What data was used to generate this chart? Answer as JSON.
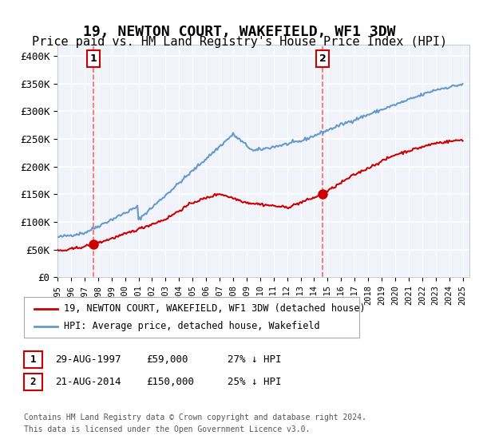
{
  "title": "19, NEWTON COURT, WAKEFIELD, WF1 3DW",
  "subtitle": "Price paid vs. HM Land Registry's House Price Index (HPI)",
  "title_fontsize": 13,
  "subtitle_fontsize": 11,
  "ylabel_ticks": [
    "£0",
    "£50K",
    "£100K",
    "£150K",
    "£200K",
    "£250K",
    "£300K",
    "£350K",
    "£400K"
  ],
  "ytick_values": [
    0,
    50000,
    100000,
    150000,
    200000,
    250000,
    300000,
    350000,
    400000
  ],
  "ylim": [
    0,
    420000
  ],
  "xlim_start": 1995.0,
  "xlim_end": 2025.5,
  "xtick_years": [
    1995,
    1996,
    1997,
    1998,
    1999,
    2000,
    2001,
    2002,
    2003,
    2004,
    2005,
    2006,
    2007,
    2008,
    2009,
    2010,
    2011,
    2012,
    2013,
    2014,
    2015,
    2016,
    2017,
    2018,
    2019,
    2020,
    2021,
    2022,
    2023,
    2024,
    2025
  ],
  "sale1_x": 1997.65,
  "sale1_y": 59000,
  "sale1_label": "1",
  "sale1_color": "#cc0000",
  "sale2_x": 2014.63,
  "sale2_y": 150000,
  "sale2_label": "2",
  "sale2_color": "#cc0000",
  "vline1_x": 1997.65,
  "vline2_x": 2014.63,
  "vline_color": "#ff6666",
  "vline_style": "--",
  "hpi_color": "#6699cc",
  "sale_color": "#cc0000",
  "legend_entries": [
    "19, NEWTON COURT, WAKEFIELD, WF1 3DW (detached house)",
    "HPI: Average price, detached house, Wakefield"
  ],
  "annotation1_label": "1",
  "annotation2_label": "2",
  "footer_line1": "Contains HM Land Registry data © Crown copyright and database right 2024.",
  "footer_line2": "This data is licensed under the Open Government Licence v3.0.",
  "table_rows": [
    {
      "num": "1",
      "date": "29-AUG-1997",
      "price": "£59,000",
      "hpi": "27% ↓ HPI"
    },
    {
      "num": "2",
      "date": "21-AUG-2014",
      "price": "£150,000",
      "hpi": "25% ↓ HPI"
    }
  ],
  "background_color": "#f0f4fa",
  "plot_bg_color": "#f0f4fa",
  "grid_color": "#ffffff",
  "border_color": "#cccccc"
}
